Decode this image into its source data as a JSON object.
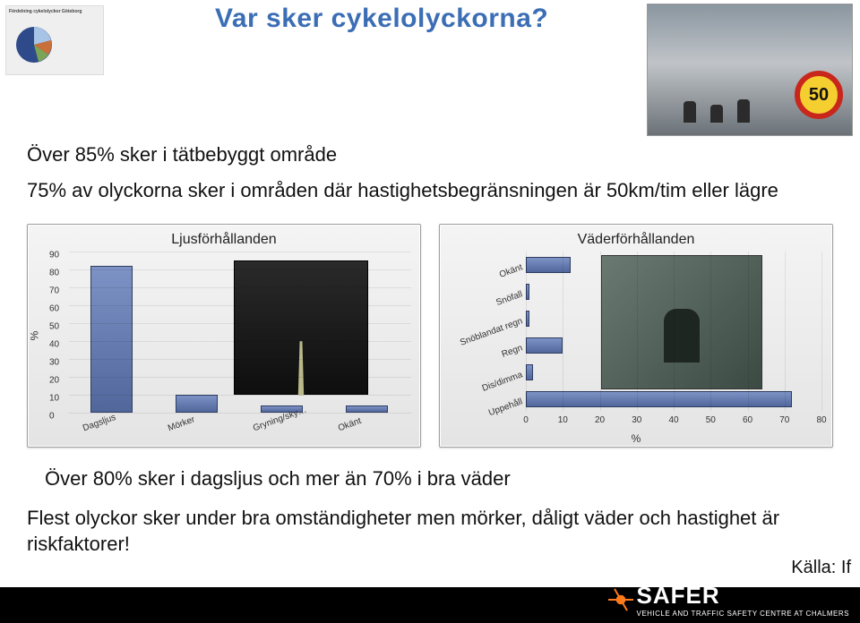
{
  "title": {
    "text": "Var sker cykelolyckorna?",
    "color": "#3b6eb5",
    "fontsize": 30
  },
  "pie_thumb_title": "Fördelning cykelolyckor Göteborg",
  "line1": "Över 85% sker i tätbebyggt område",
  "line2": "75% av olyckorna sker i områden där hastighetsbegränsningen är 50km/tim eller lägre",
  "chart_left": {
    "type": "bar",
    "title": "Ljusförhållanden",
    "ylabel": "%",
    "ylim": [
      0,
      90
    ],
    "ytick_step": 10,
    "categories": [
      "Dagsljus",
      "Mörker",
      "Gryning/sky…",
      "Okänt"
    ],
    "values": [
      82,
      10,
      4,
      4
    ],
    "bar_color": "#51679c",
    "grid_color": "#d0d0d0",
    "background": "#ececec"
  },
  "chart_right": {
    "type": "bar-horizontal",
    "title": "Väderförhållanden",
    "xlabel": "%",
    "xlim": [
      0,
      80
    ],
    "xtick_step": 10,
    "categories": [
      "Uppehåll",
      "Dis/dimma",
      "Regn",
      "Snöblandat regn",
      "Snöfall",
      "Okänt"
    ],
    "values": [
      72,
      2,
      10,
      1,
      1,
      12
    ],
    "bar_color": "#51679c",
    "grid_color": "#d0d0d0",
    "background": "#ececec"
  },
  "line3": "Över 80% sker i dagsljus och mer än 70% i bra väder",
  "line4": "Flest olyckor sker under bra omständigheter men mörker, dåligt väder och hastighet är riskfaktorer!",
  "source": "Källa: If",
  "logo": {
    "word": "SAFER",
    "sub": "VEHICLE AND TRAFFIC SAFETY CENTRE AT CHALMERS",
    "accent": "#ff7a1a"
  }
}
